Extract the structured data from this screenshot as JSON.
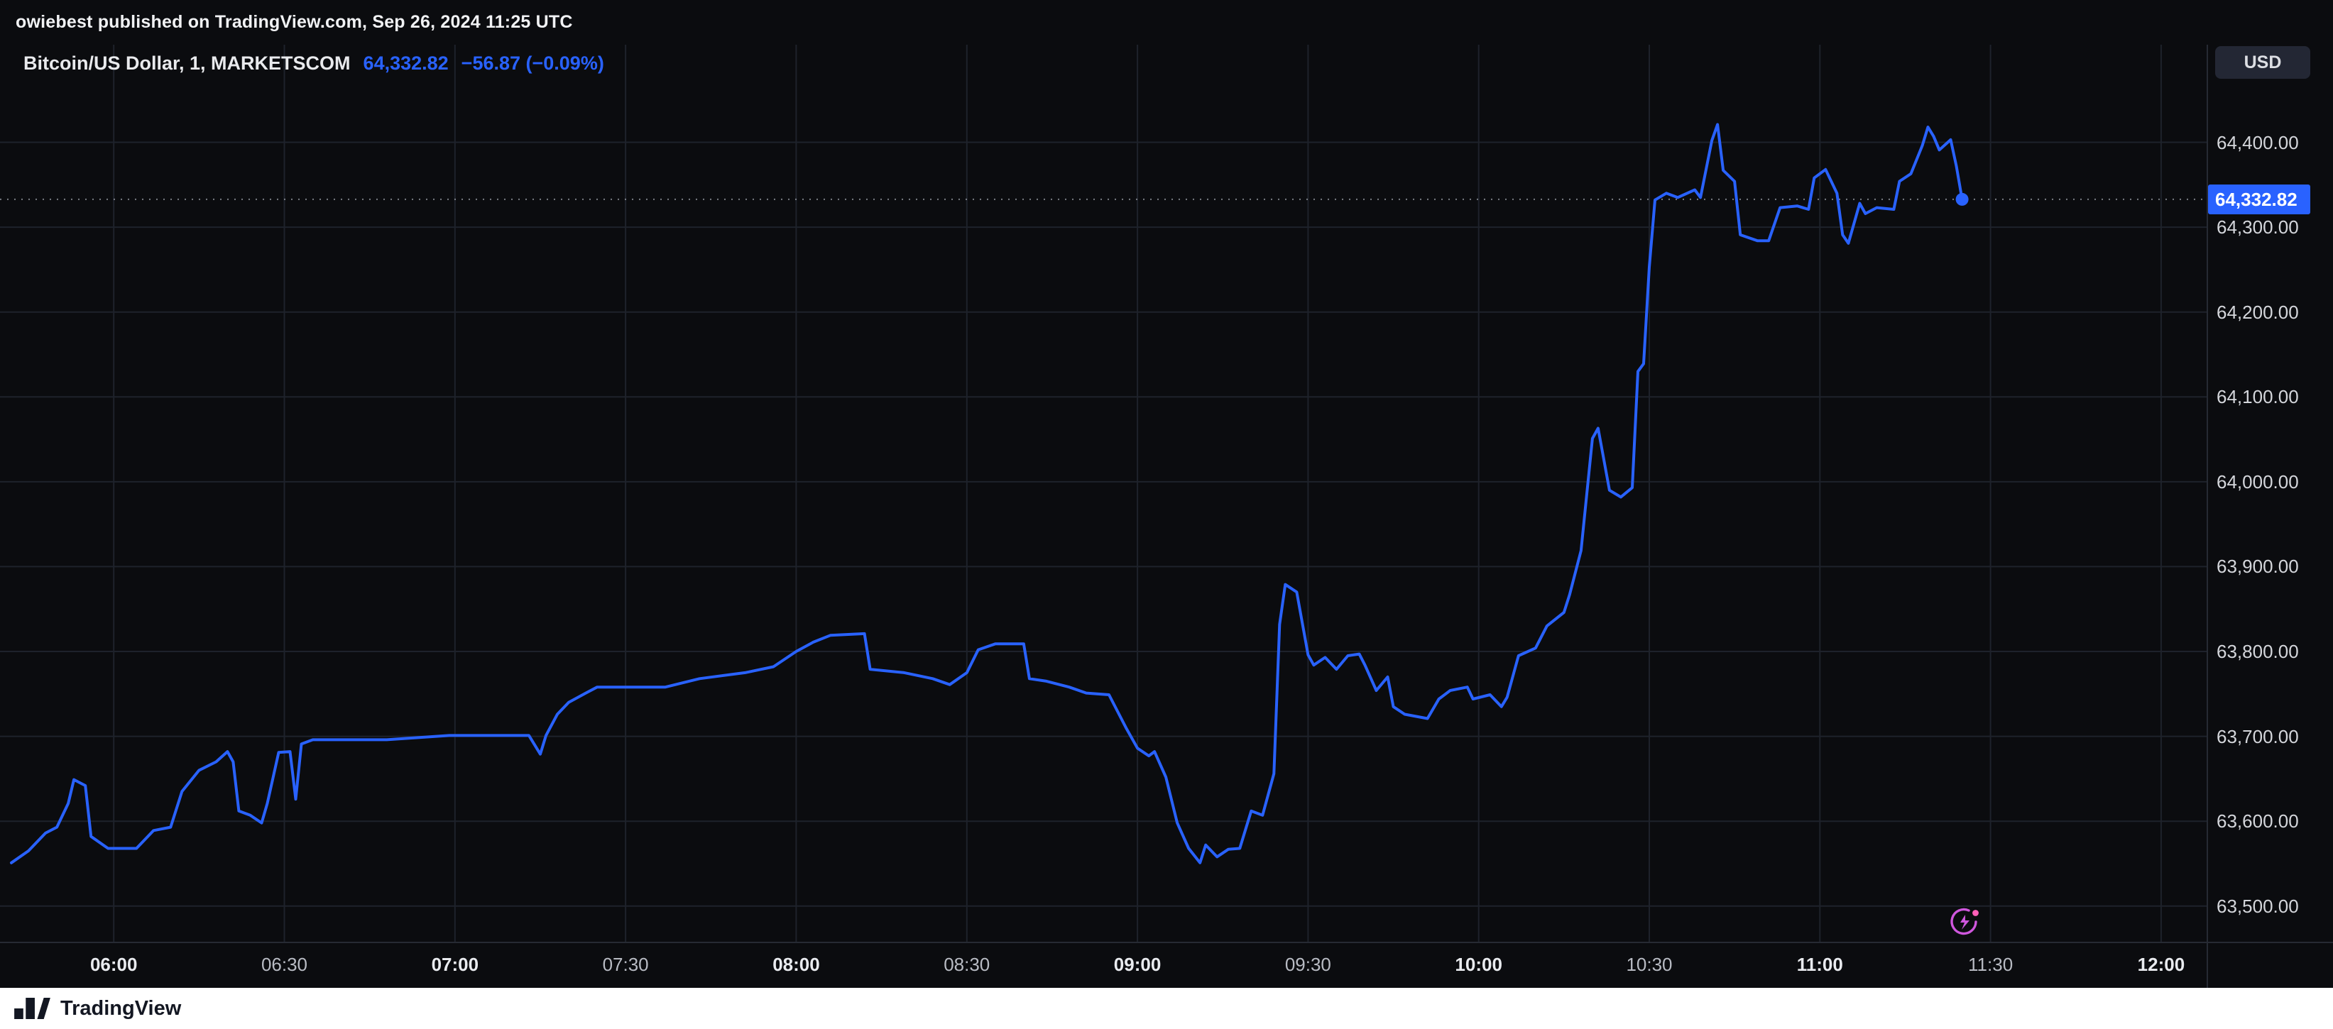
{
  "publisher_bar": {
    "text": "owiebest published on TradingView.com, Sep 26, 2024 11:25 UTC"
  },
  "header": {
    "symbol_title": "Bitcoin/US Dollar, 1, MARKETSCOM",
    "last_price": "64,332.82",
    "change": "−56.87 (−0.09%)",
    "currency_button": "USD"
  },
  "price_axis": {
    "labels": [
      {
        "text": "64,400.00",
        "value": 64400
      },
      {
        "text": "64,300.00",
        "value": 64300
      },
      {
        "text": "64,200.00",
        "value": 64200
      },
      {
        "text": "64,100.00",
        "value": 64100
      },
      {
        "text": "64,000.00",
        "value": 64000
      },
      {
        "text": "63,900.00",
        "value": 63900
      },
      {
        "text": "63,800.00",
        "value": 63800
      },
      {
        "text": "63,700.00",
        "value": 63700
      },
      {
        "text": "63,600.00",
        "value": 63600
      },
      {
        "text": "63,500.00",
        "value": 63500
      }
    ],
    "current": {
      "text": "64,332.82",
      "value": 64332.82
    }
  },
  "time_axis": {
    "labels": [
      {
        "text": "06:00",
        "minutes": 0,
        "major": true
      },
      {
        "text": "06:30",
        "minutes": 30,
        "major": false
      },
      {
        "text": "07:00",
        "minutes": 60,
        "major": true
      },
      {
        "text": "07:30",
        "minutes": 90,
        "major": false
      },
      {
        "text": "08:00",
        "minutes": 120,
        "major": true
      },
      {
        "text": "08:30",
        "minutes": 150,
        "major": false
      },
      {
        "text": "09:00",
        "minutes": 180,
        "major": true
      },
      {
        "text": "09:30",
        "minutes": 210,
        "major": false
      },
      {
        "text": "10:00",
        "minutes": 240,
        "major": true
      },
      {
        "text": "10:30",
        "minutes": 270,
        "major": false
      },
      {
        "text": "11:00",
        "minutes": 300,
        "major": true
      },
      {
        "text": "11:30",
        "minutes": 330,
        "major": false
      },
      {
        "text": "12:00",
        "minutes": 360,
        "major": true
      }
    ]
  },
  "footer": {
    "brand": "TradingView"
  },
  "colors": {
    "background": "#0b0c0f",
    "grid": "#1e222b",
    "accent_blue": "#2962FF",
    "dotted_line": "#9598a1",
    "axis_text": "#d1d4dc",
    "tag_bg": "#2962FF",
    "flash_pink": "#cf57dd",
    "footer_bg": "#ffffff",
    "footer_text": "#131722"
  },
  "chart_data": {
    "type": "line",
    "title": "Bitcoin/US Dollar, 1, MARKETSCOM",
    "symbol": "Bitcoin/US Dollar",
    "interval": "1",
    "exchange": "MARKETSCOM",
    "ylabel": "USD",
    "xlabel": "",
    "grid": true,
    "line_color": "#2962FF",
    "ylim": [
      63458,
      64515
    ],
    "x_domain_minutes": [
      -20,
      368
    ],
    "x_tick_labels": [
      "06:00",
      "06:30",
      "07:00",
      "07:30",
      "08:00",
      "08:30",
      "09:00",
      "09:30",
      "10:00",
      "10:30",
      "11:00",
      "11:30",
      "12:00"
    ],
    "last": {
      "time": "11:25",
      "price": 64332.82,
      "change": -56.87,
      "change_pct": -0.09
    },
    "points": [
      [
        "05:42",
        63551
      ],
      [
        "05:45",
        63565
      ],
      [
        "05:48",
        63586
      ],
      [
        "05:50",
        63593
      ],
      [
        "05:52",
        63621
      ],
      [
        "05:53",
        63649
      ],
      [
        "05:55",
        63642
      ],
      [
        "05:56",
        63582
      ],
      [
        "05:59",
        63568
      ],
      [
        "06:04",
        63568
      ],
      [
        "06:07",
        63589
      ],
      [
        "06:10",
        63593
      ],
      [
        "06:12",
        63635
      ],
      [
        "06:15",
        63660
      ],
      [
        "06:18",
        63670
      ],
      [
        "06:20",
        63682
      ],
      [
        "06:21",
        63670
      ],
      [
        "06:22",
        63612
      ],
      [
        "06:24",
        63607
      ],
      [
        "06:26",
        63598
      ],
      [
        "06:27",
        63621
      ],
      [
        "06:29",
        63681
      ],
      [
        "06:31",
        63682
      ],
      [
        "06:32",
        63626
      ],
      [
        "06:33",
        63691
      ],
      [
        "06:35",
        63696
      ],
      [
        "06:48",
        63696
      ],
      [
        "06:59",
        63701
      ],
      [
        "07:13",
        63701
      ],
      [
        "07:15",
        63679
      ],
      [
        "07:16",
        63701
      ],
      [
        "07:18",
        63726
      ],
      [
        "07:20",
        63740
      ],
      [
        "07:23",
        63751
      ],
      [
        "07:25",
        63758
      ],
      [
        "07:37",
        63758
      ],
      [
        "07:43",
        63768
      ],
      [
        "07:51",
        63775
      ],
      [
        "07:56",
        63782
      ],
      [
        "08:00",
        63800
      ],
      [
        "08:03",
        63811
      ],
      [
        "08:06",
        63819
      ],
      [
        "08:12",
        63821
      ],
      [
        "08:13",
        63779
      ],
      [
        "08:19",
        63775
      ],
      [
        "08:24",
        63768
      ],
      [
        "08:27",
        63761
      ],
      [
        "08:30",
        63775
      ],
      [
        "08:32",
        63802
      ],
      [
        "08:35",
        63809
      ],
      [
        "08:40",
        63809
      ],
      [
        "08:41",
        63768
      ],
      [
        "08:44",
        63765
      ],
      [
        "08:48",
        63758
      ],
      [
        "08:51",
        63751
      ],
      [
        "08:55",
        63749
      ],
      [
        "08:58",
        63710
      ],
      [
        "09:00",
        63686
      ],
      [
        "09:02",
        63677
      ],
      [
        "09:03",
        63682
      ],
      [
        "09:05",
        63652
      ],
      [
        "09:07",
        63598
      ],
      [
        "09:09",
        63568
      ],
      [
        "09:11",
        63551
      ],
      [
        "09:12",
        63572
      ],
      [
        "09:14",
        63558
      ],
      [
        "09:16",
        63567
      ],
      [
        "09:18",
        63568
      ],
      [
        "09:20",
        63612
      ],
      [
        "09:22",
        63607
      ],
      [
        "09:24",
        63656
      ],
      [
        "09:25",
        63832
      ],
      [
        "09:26",
        63879
      ],
      [
        "09:28",
        63870
      ],
      [
        "09:30",
        63796
      ],
      [
        "09:31",
        63784
      ],
      [
        "09:33",
        63793
      ],
      [
        "09:35",
        63779
      ],
      [
        "09:37",
        63795
      ],
      [
        "09:39",
        63797
      ],
      [
        "09:40",
        63784
      ],
      [
        "09:42",
        63754
      ],
      [
        "09:44",
        63770
      ],
      [
        "09:45",
        63735
      ],
      [
        "09:47",
        63726
      ],
      [
        "09:51",
        63721
      ],
      [
        "09:53",
        63744
      ],
      [
        "09:55",
        63754
      ],
      [
        "09:58",
        63758
      ],
      [
        "09:59",
        63744
      ],
      [
        "10:02",
        63749
      ],
      [
        "10:04",
        63735
      ],
      [
        "10:05",
        63746
      ],
      [
        "10:07",
        63795
      ],
      [
        "10:10",
        63804
      ],
      [
        "10:12",
        63830
      ],
      [
        "10:15",
        63846
      ],
      [
        "10:16",
        63867
      ],
      [
        "10:18",
        63919
      ],
      [
        "10:20",
        64051
      ],
      [
        "10:21",
        64063
      ],
      [
        "10:23",
        63990
      ],
      [
        "10:25",
        63982
      ],
      [
        "10:27",
        63993
      ],
      [
        "10:28",
        64130
      ],
      [
        "10:29",
        64139
      ],
      [
        "10:30",
        64253
      ],
      [
        "10:31",
        64332
      ],
      [
        "10:33",
        64340
      ],
      [
        "10:35",
        64335
      ],
      [
        "10:38",
        64344
      ],
      [
        "10:39",
        64335
      ],
      [
        "10:41",
        64402
      ],
      [
        "10:42",
        64421
      ],
      [
        "10:43",
        64367
      ],
      [
        "10:45",
        64354
      ],
      [
        "10:46",
        64291
      ],
      [
        "10:49",
        64284
      ],
      [
        "10:51",
        64284
      ],
      [
        "10:53",
        64323
      ],
      [
        "10:56",
        64325
      ],
      [
        "10:58",
        64321
      ],
      [
        "10:59",
        64358
      ],
      [
        "11:01",
        64368
      ],
      [
        "11:03",
        64340
      ],
      [
        "11:04",
        64291
      ],
      [
        "11:05",
        64281
      ],
      [
        "11:07",
        64328
      ],
      [
        "11:08",
        64316
      ],
      [
        "11:10",
        64323
      ],
      [
        "11:13",
        64321
      ],
      [
        "11:14",
        64354
      ],
      [
        "11:16",
        64363
      ],
      [
        "11:18",
        64396
      ],
      [
        "11:19",
        64418
      ],
      [
        "11:20",
        64407
      ],
      [
        "11:21",
        64391
      ],
      [
        "11:23",
        64403
      ],
      [
        "11:24",
        64372
      ],
      [
        "11:25",
        64332.82
      ]
    ]
  }
}
